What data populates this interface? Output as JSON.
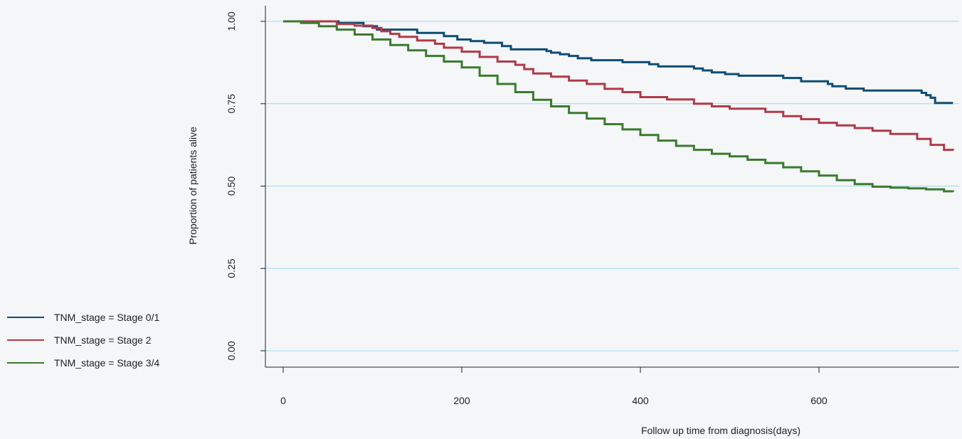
{
  "chart_data": {
    "type": "line",
    "title": "",
    "xlabel": "Follow up time from diagnosis(days)",
    "ylabel": "Proportion of patients alive",
    "xlim": [
      0,
      750
    ],
    "ylim": [
      0,
      1
    ],
    "x_ticks": [
      0,
      200,
      400,
      600
    ],
    "y_ticks": [
      0.0,
      0.25,
      0.5,
      0.75,
      1.0
    ],
    "x_tick_labels": [
      "0",
      "200",
      "400",
      "600"
    ],
    "y_tick_labels": [
      "0.00",
      "0.25",
      "0.50",
      "0.75",
      "1.00"
    ],
    "grid": "horizontal",
    "grid_color": "#9fd9ec",
    "legend_position": "left",
    "series": [
      {
        "name": "TNM_stage = Stage 0/1",
        "color": "#0e4d73",
        "x": [
          0,
          62,
          90,
          105,
          150,
          180,
          195,
          210,
          225,
          245,
          255,
          295,
          300,
          310,
          320,
          330,
          345,
          380,
          410,
          420,
          460,
          470,
          480,
          495,
          510,
          560,
          580,
          610,
          615,
          630,
          650,
          715,
          720,
          725,
          730,
          750
        ],
        "y": [
          1.0,
          0.995,
          0.985,
          0.975,
          0.965,
          0.955,
          0.945,
          0.94,
          0.935,
          0.925,
          0.915,
          0.91,
          0.905,
          0.9,
          0.895,
          0.888,
          0.882,
          0.876,
          0.87,
          0.863,
          0.857,
          0.851,
          0.845,
          0.84,
          0.835,
          0.828,
          0.818,
          0.81,
          0.803,
          0.796,
          0.79,
          0.783,
          0.776,
          0.768,
          0.752,
          0.752
        ]
      },
      {
        "name": "TNM_stage = Stage 2",
        "color": "#b03a48",
        "x": [
          0,
          60,
          80,
          100,
          110,
          120,
          130,
          150,
          170,
          180,
          200,
          220,
          240,
          260,
          270,
          280,
          300,
          320,
          340,
          360,
          380,
          400,
          430,
          460,
          480,
          500,
          540,
          560,
          580,
          600,
          620,
          640,
          660,
          680,
          710,
          725,
          740,
          750
        ],
        "y": [
          1.0,
          0.992,
          0.987,
          0.98,
          0.97,
          0.962,
          0.953,
          0.942,
          0.932,
          0.92,
          0.908,
          0.892,
          0.878,
          0.868,
          0.855,
          0.842,
          0.832,
          0.82,
          0.81,
          0.795,
          0.785,
          0.77,
          0.763,
          0.75,
          0.742,
          0.735,
          0.725,
          0.712,
          0.703,
          0.692,
          0.684,
          0.676,
          0.668,
          0.658,
          0.643,
          0.625,
          0.61,
          0.608
        ]
      },
      {
        "name": "TNM_stage = Stage 3/4",
        "color": "#3b7a2e",
        "x": [
          0,
          20,
          40,
          60,
          80,
          100,
          120,
          140,
          160,
          180,
          200,
          220,
          240,
          260,
          280,
          300,
          320,
          340,
          360,
          380,
          400,
          420,
          440,
          460,
          480,
          500,
          520,
          540,
          560,
          580,
          600,
          620,
          640,
          660,
          680,
          700,
          720,
          740,
          750
        ],
        "y": [
          1.0,
          0.995,
          0.985,
          0.975,
          0.96,
          0.945,
          0.928,
          0.912,
          0.895,
          0.878,
          0.86,
          0.835,
          0.81,
          0.785,
          0.762,
          0.742,
          0.722,
          0.705,
          0.688,
          0.672,
          0.655,
          0.638,
          0.622,
          0.61,
          0.598,
          0.59,
          0.58,
          0.57,
          0.557,
          0.545,
          0.532,
          0.518,
          0.506,
          0.498,
          0.495,
          0.493,
          0.49,
          0.484,
          0.482
        ]
      }
    ]
  }
}
